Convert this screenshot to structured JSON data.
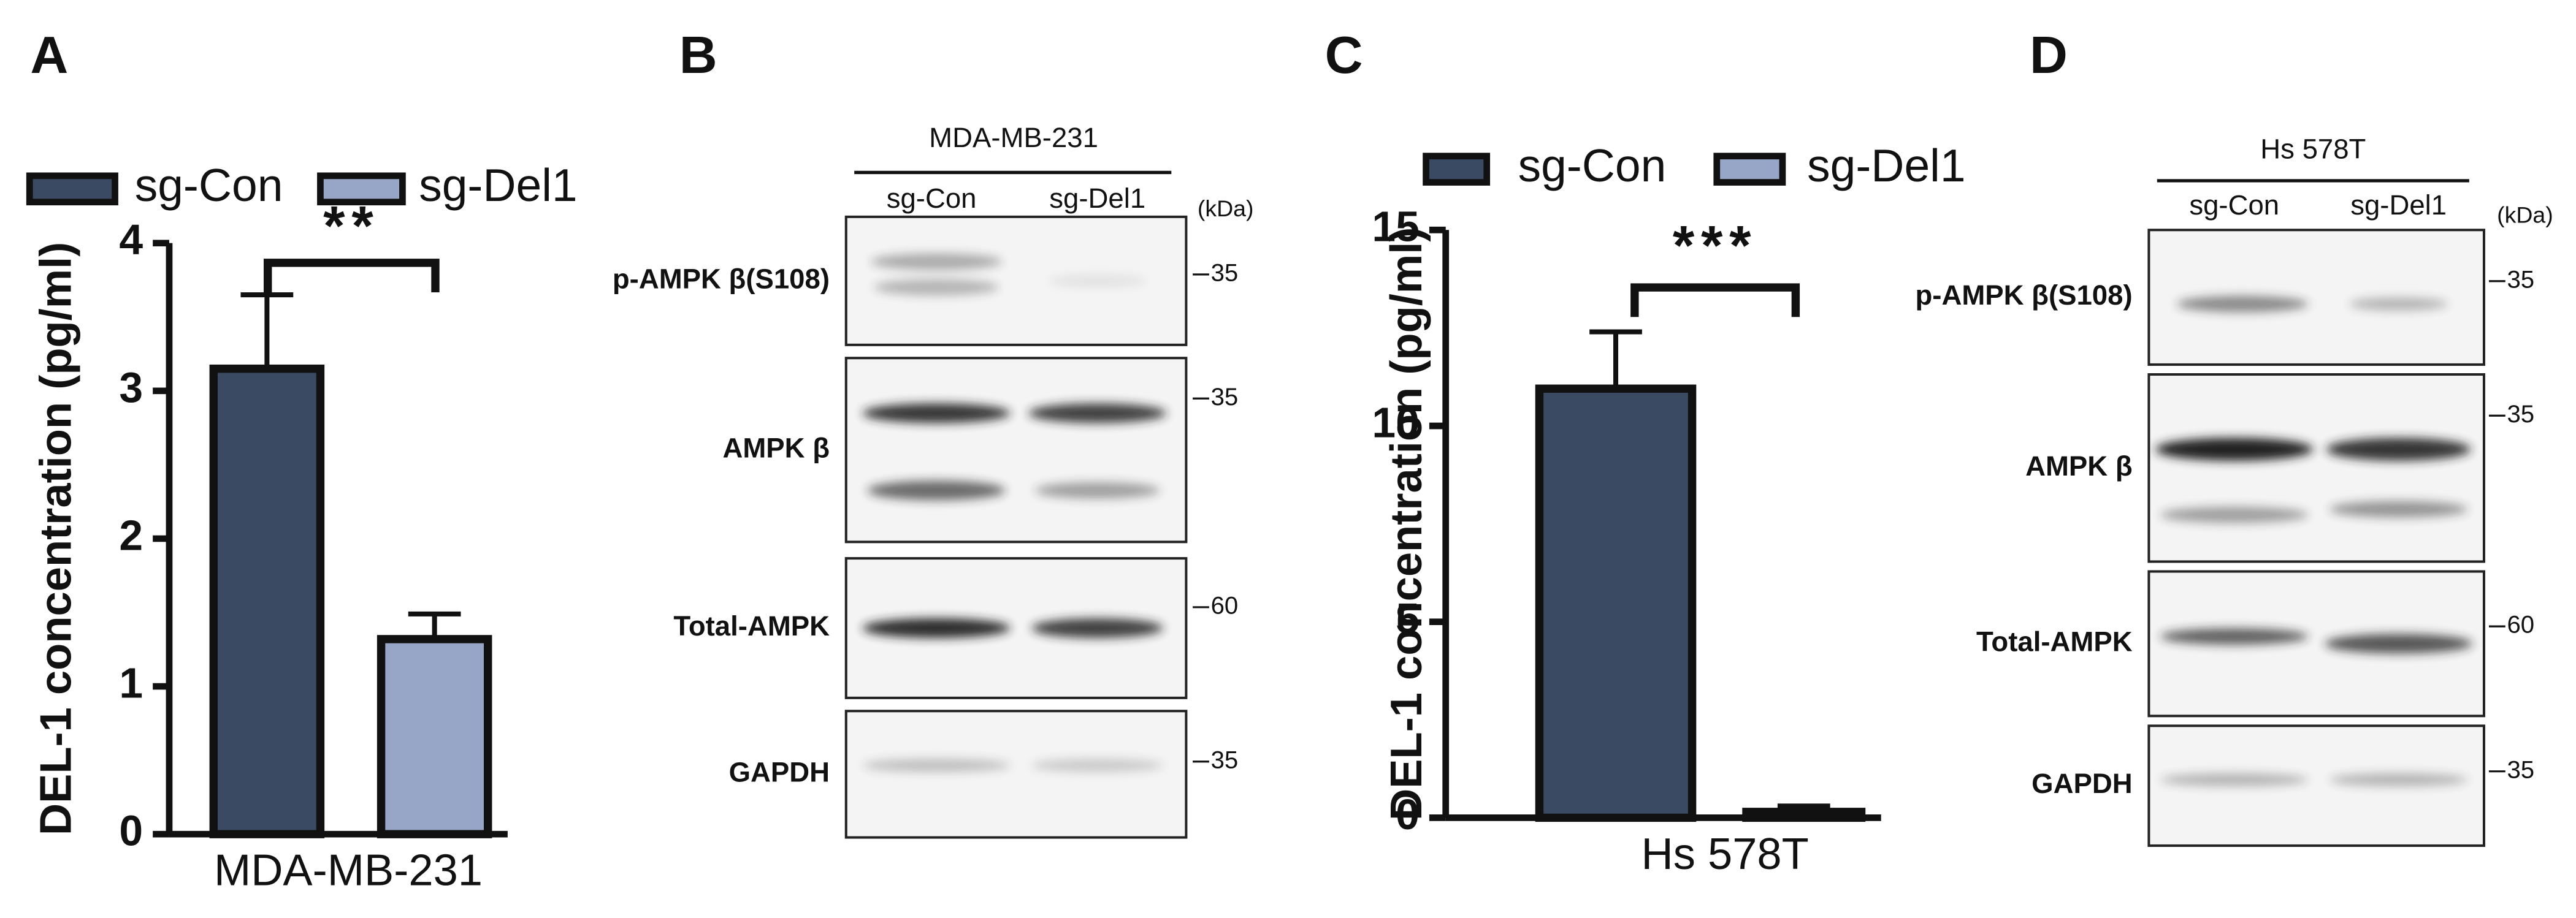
{
  "panel_labels": [
    "A",
    "B",
    "C",
    "D"
  ],
  "chart_data": [
    {
      "type": "bar",
      "categories": [
        "MDA-MB-231"
      ],
      "ylabel": "DEL-1 concentration (pg/ml)",
      "ylim": [
        0,
        4
      ],
      "yticks": [
        0,
        1,
        2,
        3,
        4
      ],
      "annotation": "**",
      "series": [
        {
          "name": "sg-Con",
          "color": "#3a4a63",
          "values": [
            3.15
          ],
          "errors": [
            0.5
          ]
        },
        {
          "name": "sg-Del1",
          "color": "#97a5c6",
          "values": [
            1.32
          ],
          "errors": [
            0.17
          ]
        }
      ]
    },
    {
      "type": "bar",
      "categories": [
        "Hs 578T"
      ],
      "ylabel": "DEL-1 concentration (pg/ml)",
      "ylim": [
        0,
        15
      ],
      "yticks": [
        0,
        5,
        10,
        15
      ],
      "annotation": "***",
      "series": [
        {
          "name": "sg-Con",
          "color": "#3a4a63",
          "values": [
            10.95
          ],
          "errors": [
            1.45
          ]
        },
        {
          "name": "sg-Del1",
          "color": "#97a5c6",
          "values": [
            0.15
          ],
          "errors": [
            0.15
          ]
        }
      ]
    }
  ],
  "blots": [
    {
      "title": "MDA-MB-231",
      "lanes": [
        "sg-Con",
        "sg-Del1"
      ],
      "unit": "(kDa)",
      "rows": [
        {
          "label": "p-AMPK β(S108)",
          "marker": "35"
        },
        {
          "label": "AMPK β",
          "marker": "35"
        },
        {
          "label": "Total-AMPK",
          "marker": "60"
        },
        {
          "label": "GAPDH",
          "marker": "35"
        }
      ]
    },
    {
      "title": "Hs 578T",
      "lanes": [
        "sg-Con",
        "sg-Del1"
      ],
      "unit": "(kDa)",
      "rows": [
        {
          "label": "p-AMPK β(S108)",
          "marker": "35"
        },
        {
          "label": "AMPK β",
          "marker": "35"
        },
        {
          "label": "Total-AMPK",
          "marker": "60"
        },
        {
          "label": "GAPDH",
          "marker": "35"
        }
      ]
    }
  ]
}
